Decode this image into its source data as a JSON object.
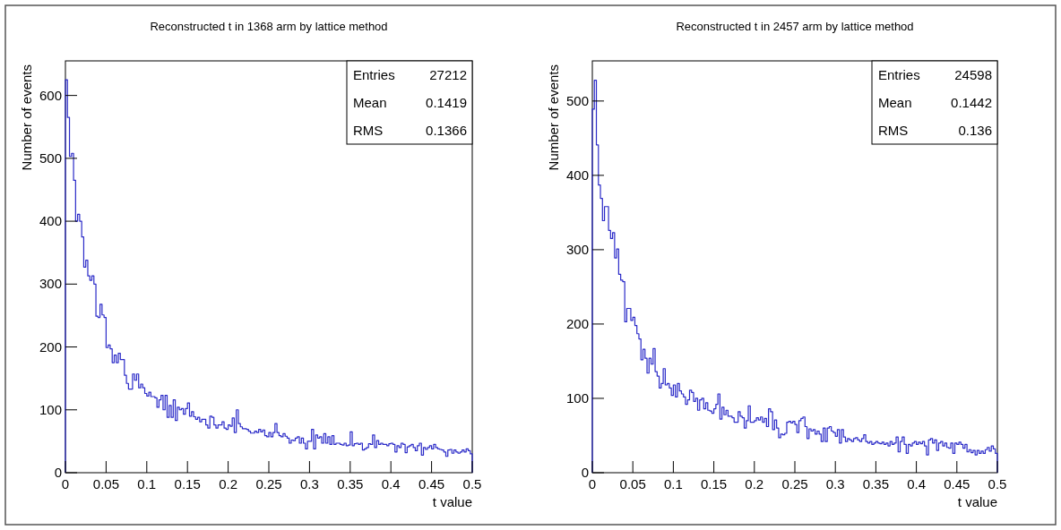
{
  "chart_data": [
    {
      "type": "histogram",
      "title": "Reconstructed t in 1368 arm by lattice method",
      "xlabel": "t value",
      "ylabel": "Number of events",
      "color": "#2b2bc8",
      "bins": [
        0,
        0.0025,
        0.005,
        0.0075,
        0.01,
        0.0125,
        0.015,
        0.0175,
        0.02,
        0.0225,
        0.025,
        0.0275,
        0.03,
        0.0325,
        0.035,
        0.0375,
        0.04,
        0.0425,
        0.045,
        0.0475,
        0.05,
        0.0525,
        0.055,
        0.0575,
        0.06,
        0.0625,
        0.065,
        0.0675,
        0.07,
        0.0725,
        0.075,
        0.0775,
        0.08,
        0.0825,
        0.085,
        0.0875,
        0.09,
        0.0925,
        0.095,
        0.0975,
        0.1,
        0.1025,
        0.105,
        0.1075,
        0.11,
        0.1125,
        0.115,
        0.1175,
        0.12,
        0.1225,
        0.125,
        0.1275,
        0.13,
        0.1325,
        0.135,
        0.1375,
        0.14,
        0.1425,
        0.145,
        0.1475,
        0.15,
        0.1525,
        0.155,
        0.1575,
        0.16,
        0.1625,
        0.165,
        0.1675,
        0.17,
        0.1725,
        0.175,
        0.1775,
        0.18,
        0.1825,
        0.185,
        0.1875,
        0.19,
        0.1925,
        0.195,
        0.1975,
        0.2,
        0.2025,
        0.205,
        0.2075,
        0.21,
        0.2125,
        0.215,
        0.2175,
        0.22,
        0.2225,
        0.225,
        0.2275,
        0.23,
        0.2325,
        0.235,
        0.2375,
        0.24,
        0.2425,
        0.245,
        0.2475,
        0.25,
        0.2525,
        0.255,
        0.2575,
        0.26,
        0.2625,
        0.265,
        0.2675,
        0.27,
        0.2725,
        0.275,
        0.2775,
        0.28,
        0.2825,
        0.285,
        0.2875,
        0.29,
        0.2925,
        0.295,
        0.2975,
        0.3,
        0.3025,
        0.305,
        0.3075,
        0.31,
        0.3125,
        0.315,
        0.3175,
        0.32,
        0.3225,
        0.325,
        0.3275,
        0.33,
        0.3325,
        0.335,
        0.3375,
        0.34,
        0.3425,
        0.345,
        0.3475,
        0.35,
        0.3525,
        0.355,
        0.3575,
        0.36,
        0.3625,
        0.365,
        0.3675,
        0.37,
        0.3725,
        0.375,
        0.3775,
        0.38,
        0.3825,
        0.385,
        0.3875,
        0.39,
        0.3925,
        0.395,
        0.3975,
        0.4,
        0.4025,
        0.405,
        0.4075,
        0.41,
        0.4125,
        0.415,
        0.4175,
        0.42,
        0.4225,
        0.425,
        0.4275,
        0.43,
        0.4325,
        0.435,
        0.4375,
        0.44,
        0.4425,
        0.445,
        0.4475,
        0.45,
        0.4525,
        0.455,
        0.4575,
        0.46,
        0.4625,
        0.465,
        0.4675,
        0.47,
        0.4725,
        0.475,
        0.4775,
        0.48,
        0.4825,
        0.485,
        0.4875,
        0.49,
        0.4925,
        0.495,
        0.4975,
        0.5
      ],
      "values": [
        625,
        565,
        503,
        508,
        465,
        400,
        411,
        400,
        375,
        327,
        338,
        313,
        306,
        313,
        300,
        249,
        247,
        268,
        251,
        247,
        199,
        203,
        197,
        175,
        187,
        175,
        190,
        180,
        180,
        155,
        142,
        133,
        133,
        157,
        147,
        157,
        135,
        141,
        135,
        126,
        122,
        128,
        121,
        121,
        119,
        104,
        116,
        123,
        100,
        123,
        88,
        107,
        88,
        116,
        83,
        104,
        100,
        102,
        93,
        102,
        111,
        90,
        97,
        89,
        85,
        88,
        81,
        85,
        85,
        76,
        71,
        90,
        88,
        76,
        71,
        76,
        76,
        81,
        71,
        69,
        76,
        74,
        87,
        64,
        100,
        78,
        73,
        70,
        70,
        69,
        66,
        63,
        63,
        66,
        64,
        69,
        65,
        68,
        59,
        57,
        64,
        57,
        64,
        78,
        64,
        59,
        57,
        62,
        58,
        55,
        47,
        52,
        51,
        55,
        57,
        47,
        55,
        47,
        38,
        50,
        50,
        69,
        38,
        60,
        55,
        57,
        47,
        62,
        47,
        57,
        45,
        59,
        45,
        47,
        47,
        45,
        44,
        47,
        43,
        44,
        65,
        43,
        46,
        47,
        45,
        47,
        36,
        38,
        40,
        46,
        45,
        60,
        40,
        51,
        45,
        47,
        45,
        45,
        43,
        46,
        47,
        45,
        33,
        43,
        40,
        47,
        45,
        32,
        41,
        43,
        45,
        40,
        35,
        43,
        47,
        28,
        40,
        37,
        40,
        43,
        38,
        45,
        40,
        38,
        37,
        36,
        33,
        26,
        36,
        37,
        31,
        36,
        33,
        31,
        33,
        36,
        33,
        38,
        35,
        30
      ],
      "xlim": [
        0,
        0.5
      ],
      "xticks": [
        0,
        0.05,
        0.1,
        0.15,
        0.2,
        0.25,
        0.3,
        0.35,
        0.4,
        0.45,
        0.5
      ],
      "ylim": [
        0,
        655
      ],
      "yticks": [
        0,
        100,
        200,
        300,
        400,
        500,
        600
      ],
      "annotations": [
        "Entries",
        "27212",
        "Mean",
        "0.1419",
        "RMS",
        "0.1366"
      ]
    },
    {
      "type": "histogram",
      "title": "Reconstructed t in 2457 arm by lattice method",
      "xlabel": "t value",
      "ylabel": "Number of events",
      "color": "#2b2bc8",
      "bins": [
        0,
        0.0025,
        0.005,
        0.0075,
        0.01,
        0.0125,
        0.015,
        0.0175,
        0.02,
        0.0225,
        0.025,
        0.0275,
        0.03,
        0.0325,
        0.035,
        0.0375,
        0.04,
        0.0425,
        0.045,
        0.0475,
        0.05,
        0.0525,
        0.055,
        0.0575,
        0.06,
        0.0625,
        0.065,
        0.0675,
        0.07,
        0.0725,
        0.075,
        0.0775,
        0.08,
        0.0825,
        0.085,
        0.0875,
        0.09,
        0.0925,
        0.095,
        0.0975,
        0.1,
        0.1025,
        0.105,
        0.1075,
        0.11,
        0.1125,
        0.115,
        0.1175,
        0.12,
        0.1225,
        0.125,
        0.1275,
        0.13,
        0.1325,
        0.135,
        0.1375,
        0.14,
        0.1425,
        0.145,
        0.1475,
        0.15,
        0.1525,
        0.155,
        0.1575,
        0.16,
        0.1625,
        0.165,
        0.1675,
        0.17,
        0.1725,
        0.175,
        0.1775,
        0.18,
        0.1825,
        0.185,
        0.1875,
        0.19,
        0.1925,
        0.195,
        0.1975,
        0.2,
        0.2025,
        0.205,
        0.2075,
        0.21,
        0.2125,
        0.215,
        0.2175,
        0.22,
        0.2225,
        0.225,
        0.2275,
        0.23,
        0.2325,
        0.235,
        0.2375,
        0.24,
        0.2425,
        0.245,
        0.2475,
        0.25,
        0.2525,
        0.255,
        0.2575,
        0.26,
        0.2625,
        0.265,
        0.2675,
        0.27,
        0.2725,
        0.275,
        0.2775,
        0.28,
        0.2825,
        0.285,
        0.2875,
        0.29,
        0.2925,
        0.295,
        0.2975,
        0.3,
        0.3025,
        0.305,
        0.3075,
        0.31,
        0.3125,
        0.315,
        0.3175,
        0.32,
        0.3225,
        0.325,
        0.3275,
        0.33,
        0.3325,
        0.335,
        0.3375,
        0.34,
        0.3425,
        0.345,
        0.3475,
        0.35,
        0.3525,
        0.355,
        0.3575,
        0.36,
        0.3625,
        0.365,
        0.3675,
        0.37,
        0.3725,
        0.375,
        0.3775,
        0.38,
        0.3825,
        0.385,
        0.3875,
        0.39,
        0.3925,
        0.395,
        0.3975,
        0.4,
        0.4025,
        0.405,
        0.4075,
        0.41,
        0.4125,
        0.415,
        0.4175,
        0.42,
        0.4225,
        0.425,
        0.4275,
        0.43,
        0.4325,
        0.435,
        0.4375,
        0.44,
        0.4425,
        0.445,
        0.4475,
        0.45,
        0.4525,
        0.455,
        0.4575,
        0.46,
        0.4625,
        0.465,
        0.4675,
        0.47,
        0.4725,
        0.475,
        0.4775,
        0.48,
        0.4825,
        0.485,
        0.4875,
        0.49,
        0.4925,
        0.495,
        0.4975,
        0.5
      ],
      "values": [
        489,
        528,
        441,
        387,
        369,
        339,
        358,
        358,
        326,
        315,
        323,
        289,
        301,
        267,
        259,
        257,
        203,
        221,
        221,
        205,
        209,
        198,
        187,
        180,
        152,
        166,
        154,
        134,
        154,
        146,
        167,
        136,
        130,
        114,
        120,
        140,
        118,
        120,
        114,
        104,
        118,
        102,
        120,
        110,
        106,
        102,
        92,
        98,
        111,
        108,
        96,
        100,
        84,
        98,
        100,
        86,
        94,
        84,
        83,
        80,
        86,
        92,
        106,
        72,
        88,
        78,
        84,
        76,
        76,
        74,
        68,
        68,
        82,
        76,
        74,
        60,
        70,
        90,
        68,
        68,
        70,
        74,
        71,
        75,
        68,
        73,
        62,
        86,
        82,
        58,
        71,
        60,
        47,
        52,
        51,
        53,
        68,
        69,
        67,
        69,
        65,
        54,
        70,
        73,
        75,
        62,
        46,
        59,
        56,
        58,
        52,
        56,
        52,
        42,
        60,
        42,
        60,
        62,
        56,
        54,
        49,
        58,
        40,
        58,
        48,
        42,
        46,
        44,
        42,
        46,
        47,
        44,
        42,
        46,
        51,
        42,
        40,
        42,
        38,
        40,
        42,
        40,
        39,
        41,
        38,
        40,
        36,
        42,
        38,
        40,
        48,
        28,
        42,
        48,
        38,
        26,
        38,
        36,
        40,
        42,
        38,
        41,
        39,
        42,
        36,
        24,
        44,
        46,
        40,
        44,
        30,
        40,
        42,
        36,
        40,
        34,
        33,
        40,
        26,
        40,
        38,
        41,
        38,
        33,
        38,
        28,
        31,
        27,
        30,
        24,
        30,
        26,
        29,
        26,
        31,
        34,
        29,
        36,
        32,
        26
      ],
      "xlim": [
        0,
        0.5
      ],
      "xticks": [
        0,
        0.05,
        0.1,
        0.15,
        0.2,
        0.25,
        0.3,
        0.35,
        0.4,
        0.45,
        0.5
      ],
      "ylim": [
        0,
        554
      ],
      "yticks": [
        0,
        100,
        200,
        300,
        400,
        500
      ],
      "annotations": [
        "Entries",
        "24598",
        "Mean",
        "0.1442",
        "RMS",
        "0.136"
      ]
    }
  ]
}
